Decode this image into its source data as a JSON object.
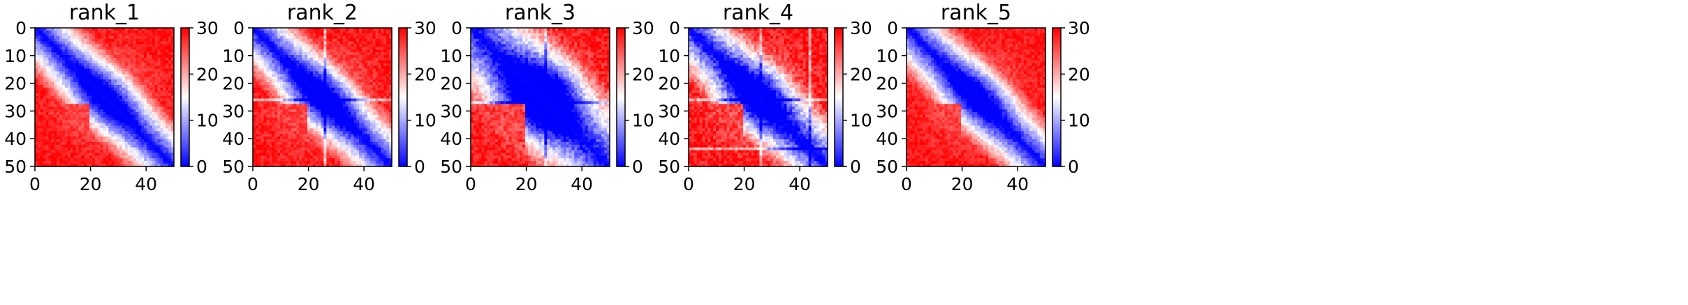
{
  "chart_data": [
    {
      "type": "heatmap",
      "title": "rank_1",
      "matrix_size": 51,
      "pattern": {
        "diag_width": 4,
        "uniformity": 1.0,
        "blob": 0.7,
        "noise": 2.0,
        "cross_bands": [],
        "seed": 11
      },
      "x_ticks": [
        "0",
        "20",
        "40"
      ],
      "y_ticks": [
        "0",
        "10",
        "20",
        "30",
        "40",
        "50"
      ],
      "colorbar": {
        "cmap": "bwr",
        "vmin": 0,
        "vmax": 30,
        "ticks": [
          "0",
          "10",
          "20",
          "30"
        ]
      }
    },
    {
      "type": "heatmap",
      "title": "rank_2",
      "matrix_size": 51,
      "pattern": {
        "diag_width": 4,
        "uniformity": 1.0,
        "blob": 0.8,
        "noise": 2.2,
        "cross_bands": [
          26
        ],
        "seed": 23
      },
      "x_ticks": [
        "0",
        "20",
        "40"
      ],
      "y_ticks": [
        "0",
        "10",
        "20",
        "30",
        "40",
        "50"
      ],
      "colorbar": {
        "cmap": "bwr",
        "vmin": 0,
        "vmax": 30,
        "ticks": [
          "0",
          "10",
          "20",
          "30"
        ]
      }
    },
    {
      "type": "heatmap",
      "title": "rank_3",
      "matrix_size": 51,
      "pattern": {
        "diag_width": 5,
        "uniformity": 0.75,
        "blob": 1.5,
        "noise": 2.8,
        "cross_bands": [
          27
        ],
        "seed": 37
      },
      "x_ticks": [
        "0",
        "20",
        "40"
      ],
      "y_ticks": [
        "0",
        "10",
        "20",
        "30",
        "40",
        "50"
      ],
      "colorbar": {
        "cmap": "bwr",
        "vmin": 0,
        "vmax": 30,
        "ticks": [
          "0",
          "10",
          "20",
          "30"
        ]
      }
    },
    {
      "type": "heatmap",
      "title": "rank_4",
      "matrix_size": 51,
      "pattern": {
        "diag_width": 4,
        "uniformity": 0.9,
        "blob": 1.0,
        "noise": 3.0,
        "cross_bands": [
          26,
          44
        ],
        "seed": 41
      },
      "x_ticks": [
        "0",
        "20",
        "40"
      ],
      "y_ticks": [
        "0",
        "10",
        "20",
        "30",
        "40",
        "50"
      ],
      "colorbar": {
        "cmap": "bwr",
        "vmin": 0,
        "vmax": 30,
        "ticks": [
          "0",
          "10",
          "20",
          "30"
        ]
      }
    },
    {
      "type": "heatmap",
      "title": "rank_5",
      "matrix_size": 51,
      "pattern": {
        "diag_width": 4,
        "uniformity": 1.0,
        "blob": 0.7,
        "noise": 2.0,
        "cross_bands": [],
        "seed": 53
      },
      "x_ticks": [
        "0",
        "20",
        "40"
      ],
      "y_ticks": [
        "0",
        "10",
        "20",
        "30",
        "40",
        "50"
      ],
      "colorbar": {
        "cmap": "bwr",
        "vmin": 0,
        "vmax": 30,
        "ticks": [
          "0",
          "10",
          "20",
          "30"
        ]
      }
    }
  ]
}
